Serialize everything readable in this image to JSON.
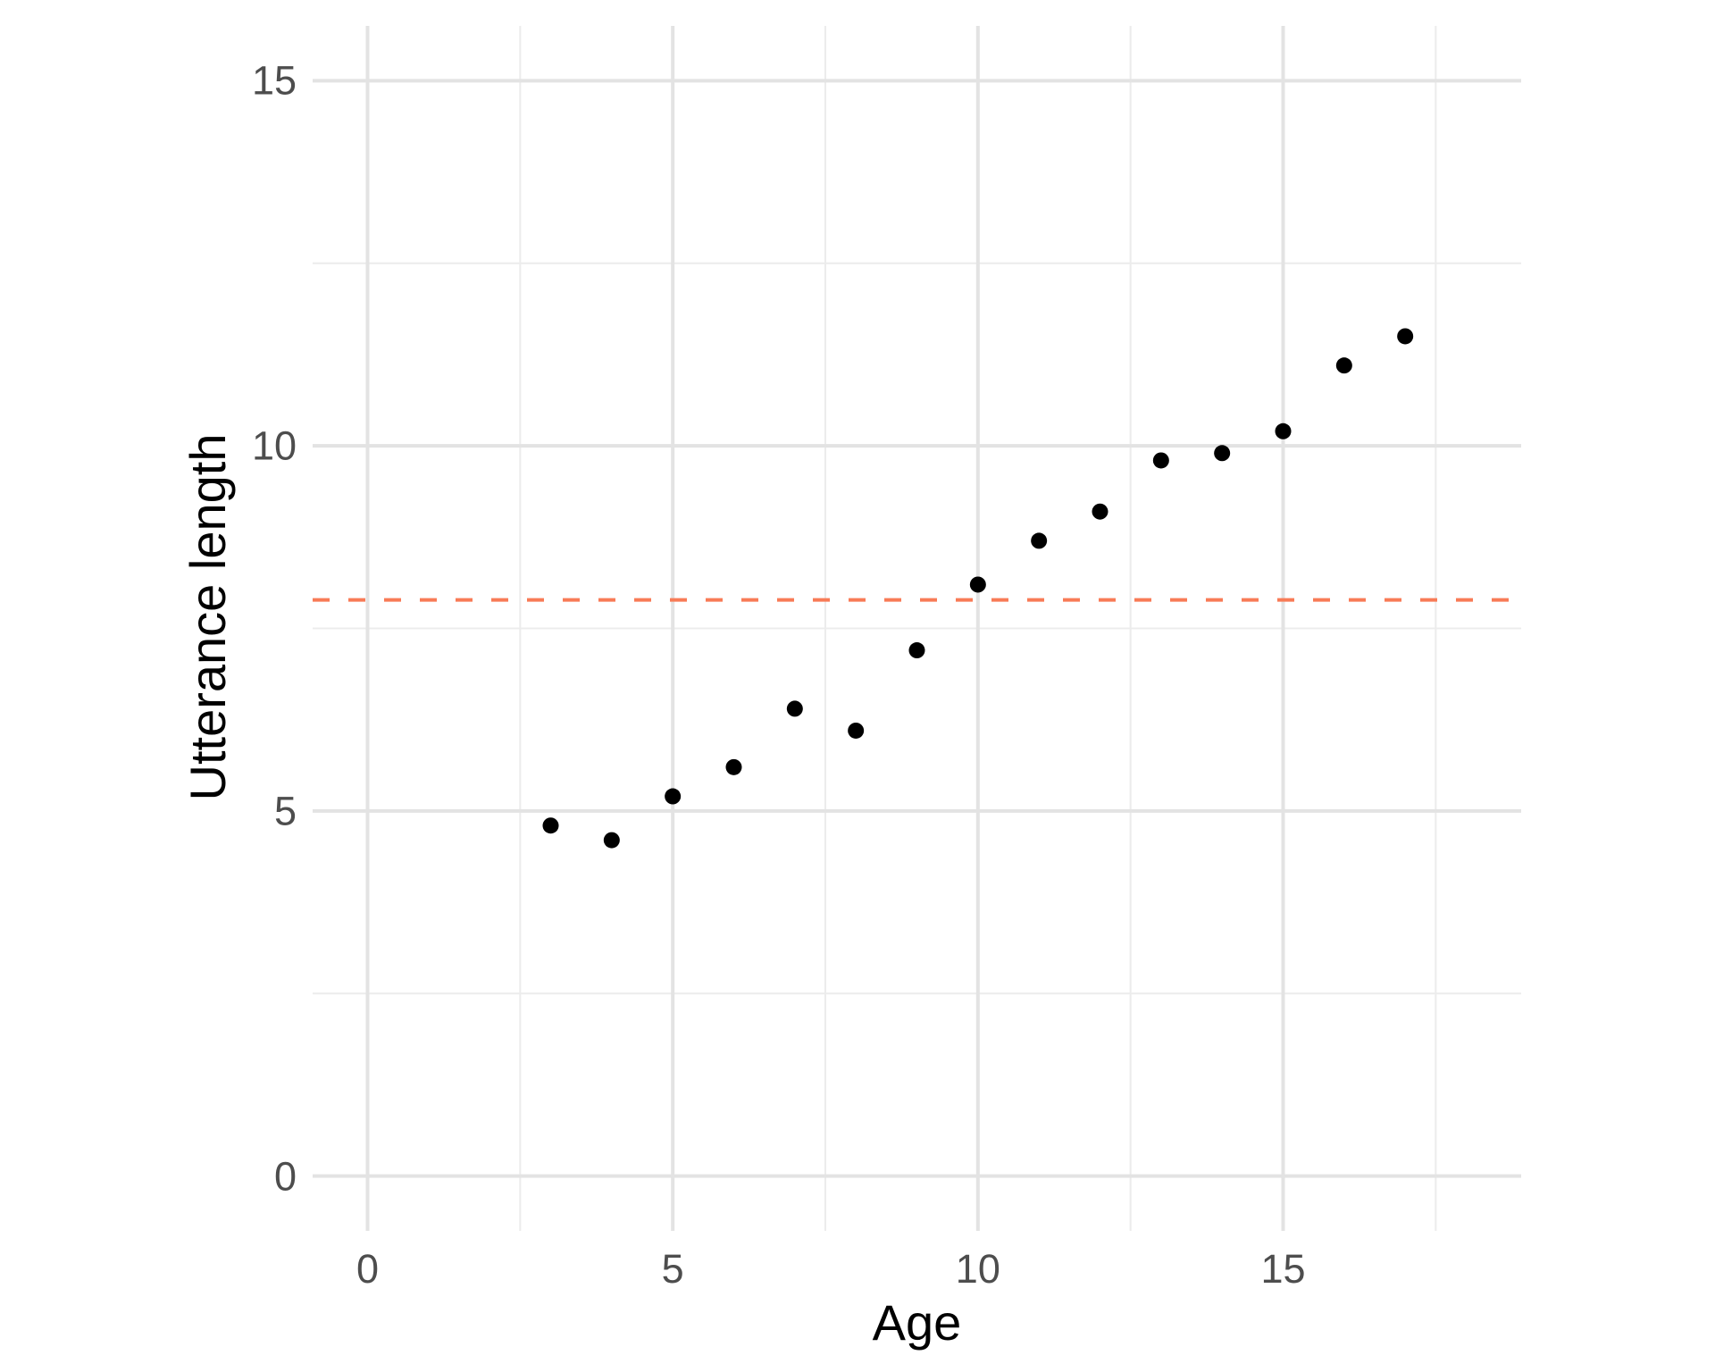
{
  "chart_data": {
    "type": "scatter",
    "title": "",
    "xlabel": "Age",
    "ylabel": "Utterance length",
    "x": [
      3,
      4,
      5,
      6,
      7,
      8,
      9,
      10,
      11,
      12,
      13,
      14,
      15,
      16,
      17
    ],
    "y": [
      4.8,
      4.6,
      5.2,
      5.6,
      6.4,
      6.1,
      7.2,
      8.1,
      8.7,
      9.1,
      9.8,
      9.9,
      10.2,
      11.1,
      11.5
    ],
    "hline": {
      "y": 7.89,
      "style": "dashed",
      "color": "#F87B56"
    },
    "xlim": [
      0,
      18
    ],
    "ylim": [
      0,
      15
    ],
    "x_ticks": [
      0,
      5,
      10,
      15
    ],
    "y_ticks": [
      0,
      5,
      10,
      15
    ],
    "x_tick_labels": [
      "0",
      "5",
      "10",
      "15"
    ],
    "y_tick_labels": [
      "0",
      "5",
      "10",
      "15"
    ],
    "x_minor_ticks": [
      2.5,
      7.5,
      12.5,
      17.5
    ],
    "y_minor_ticks": [
      2.5,
      7.5,
      12.5
    ],
    "grid": true,
    "legend": "none",
    "point_color": "#000000",
    "point_radius_px": 9,
    "grid_major_color": "#E3E3E3",
    "grid_minor_color": "#ECECEC",
    "tick_label_color": "#4D4D4D",
    "axis_title_color": "#000000",
    "background_color": "#FFFFFF"
  }
}
